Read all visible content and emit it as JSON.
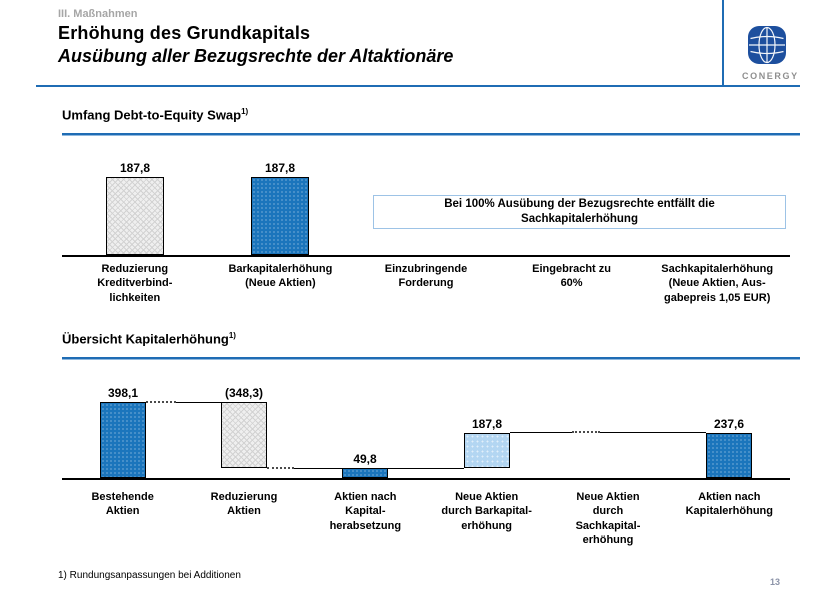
{
  "header": {
    "eyebrow": "III. Maßnahmen",
    "title": "Erhöhung des Grundkapitals",
    "subtitle": "Ausübung aller Bezugsrechte der Altaktionäre",
    "logo": {
      "wordmark": "CONERGY"
    }
  },
  "sections": [
    {
      "title": "Umfang Debt-to-Equity Swap",
      "footnote_marker": "1)"
    },
    {
      "title": "Übersicht Kapitalerhöhung",
      "footnote_marker": "1)"
    }
  ],
  "chart_data": [
    {
      "type": "bar",
      "title": "Umfang Debt-to-Equity Swap",
      "xlabel": "",
      "ylabel": "",
      "ylim": [
        0,
        258
      ],
      "grid": false,
      "legend": false,
      "categories": [
        "Reduzierung Kreditverbindlichkeiten",
        "Barkapitalerhöhung (Neue Aktien)",
        "Einzubringende Forderung",
        "Eingebracht zu 60%",
        "Sachkapitalerhöhung (Neue Aktien, Ausgabepreis 1,05 EUR)"
      ],
      "category_labels": [
        "Reduzierung\nKreditverbind-\nlichkeiten",
        "Barkapitalerhöhung\n(Neue Aktien)",
        "Einzubringende\nForderung",
        "Eingebracht zu\n60%",
        "Sachkapitalerhöhung\n(Neue Aktien, Aus-\ngabepreis 1,05 EUR)"
      ],
      "values": [
        187.8,
        187.8,
        null,
        null,
        null
      ],
      "bars": [
        {
          "category": "Reduzierung Kreditverbindlichkeiten",
          "from": 0,
          "to": 187.8,
          "label": "187,8",
          "style": "gray-hatch"
        },
        {
          "category": "Barkapitalerhöhung (Neue Aktien)",
          "from": 0,
          "to": 187.8,
          "label": "187,8",
          "style": "blue"
        }
      ],
      "annotation": "Bei 100% Ausübung der Bezugsrechte entfällt die\nSachkapitalerhöhung"
    },
    {
      "type": "bar",
      "variant": "waterfall",
      "title": "Übersicht Kapitalerhöhung",
      "xlabel": "",
      "ylabel": "",
      "ylim": [
        0,
        565
      ],
      "grid": false,
      "legend": false,
      "categories": [
        "Bestehende Aktien",
        "Reduzierung Aktien",
        "Aktien nach Kapitalherabsetzung",
        "Neue Aktien durch Barkapitalerhöhung",
        "Neue Aktien durch Sachkapitalerhöhung",
        "Aktien nach Kapitalerhöhung"
      ],
      "category_labels": [
        "Bestehende\nAktien",
        "Reduzierung\nAktien",
        "Aktien nach\nKapital-\nherabsetzung",
        "Neue Aktien\ndurch Barkapital-\nerhöhung",
        "Neue Aktien\ndurch\nSachkapital-\nerhöhung",
        "Aktien nach\nKapitalerhöhung"
      ],
      "values": [
        398.1,
        -348.3,
        49.8,
        187.8,
        0,
        237.6
      ],
      "bars": [
        {
          "category": "Bestehende Aktien",
          "from": 0,
          "to": 398.1,
          "label": "398,1",
          "style": "blue"
        },
        {
          "category": "Reduzierung Aktien",
          "from": 398.1,
          "to": 49.8,
          "label": "(348,3)",
          "style": "gray-hatch"
        },
        {
          "category": "Aktien nach Kapitalherabsetzung",
          "from": 0,
          "to": 49.8,
          "label": "49,8",
          "style": "blue"
        },
        {
          "category": "Neue Aktien durch Barkapitalerhöhung",
          "from": 49.8,
          "to": 237.6,
          "label": "187,8",
          "style": "lightblue"
        },
        {
          "category": "Neue Aktien durch Sachkapitalerhöhung",
          "from": 237.6,
          "to": 237.6,
          "label": "",
          "style": "none"
        },
        {
          "category": "Aktien nach Kapitalerhöhung",
          "from": 0,
          "to": 237.6,
          "label": "237,6",
          "style": "blue"
        }
      ]
    }
  ],
  "footer": {
    "footnote": "1) Rundungsanpassungen bei Additionen",
    "page_number": "13"
  },
  "colors": {
    "accent_blue": "#1f6cb4",
    "bar_blue": "#1b75bc",
    "bar_light_blue": "#b3d6f2",
    "bar_gray": "#efefef",
    "callout_border": "#9dc3e6",
    "logo_blue": "#1d4f9e",
    "muted_gray": "#a6a6a6",
    "page_number_color": "#8b93a8"
  }
}
